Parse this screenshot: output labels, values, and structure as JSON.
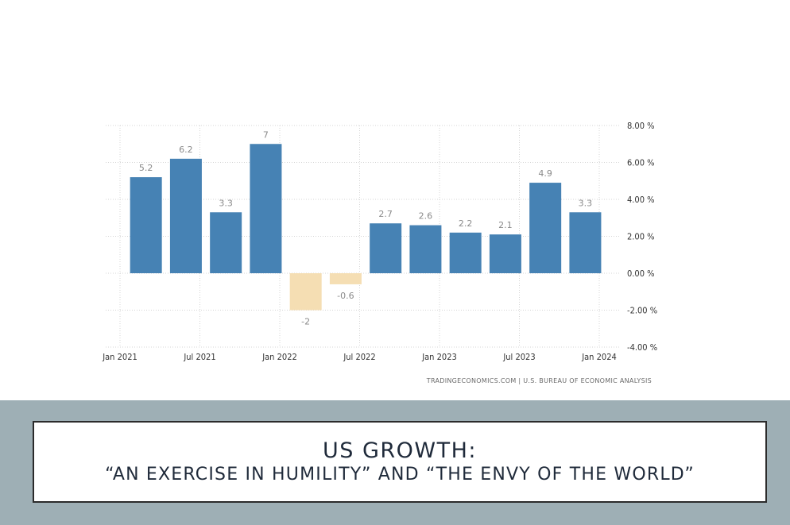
{
  "chart_data": {
    "type": "bar",
    "categories": [
      "Q1 2021",
      "Q2 2021",
      "Q3 2021",
      "Q4 2021",
      "Q1 2022",
      "Q2 2022",
      "Q3 2022",
      "Q4 2022",
      "Q1 2023",
      "Q2 2023",
      "Q3 2023",
      "Q4 2023"
    ],
    "values": [
      5.2,
      6.2,
      3.3,
      7,
      -2,
      -0.6,
      2.7,
      2.6,
      2.2,
      2.1,
      4.9,
      3.3
    ],
    "value_labels": [
      "5.2",
      "6.2",
      "3.3",
      "7",
      "-2",
      "-0.6",
      "2.7",
      "2.6",
      "2.2",
      "2.1",
      "4.9",
      "3.3"
    ],
    "ylim": [
      -4,
      8
    ],
    "y_ticks": [
      8,
      6,
      4,
      2,
      0,
      -2,
      -4
    ],
    "y_tick_labels": [
      "8.00 %",
      "6.00 %",
      "4.00 %",
      "2.00 %",
      "0.00 %",
      "-2.00 %",
      "-4.00 %"
    ],
    "x_tick_labels": [
      "Jan 2021",
      "Jul 2021",
      "Jan 2022",
      "Jul 2022",
      "Jan 2023",
      "Jul 2023",
      "Jan 2024"
    ],
    "y_axis_position": "right",
    "grid": true,
    "colors": {
      "positive": "#4682b4",
      "negative": "#f5deb3"
    },
    "source": "TRADINGECONOMICS.COM | U.S. BUREAU OF ECONOMIC ANALYSIS"
  },
  "title": {
    "line1": "US GROWTH:",
    "line2": "“AN EXERCISE IN HUMILITY” AND “THE ENVY OF THE WORLD”"
  }
}
